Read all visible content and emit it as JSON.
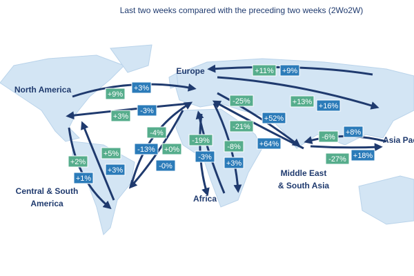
{
  "title": "Last two weeks compared with the preceding two weeks (2Wo2W)",
  "regions": [
    {
      "lines": [
        "Europe"
      ]
    },
    {
      "lines": [
        "North America"
      ]
    },
    {
      "lines": [
        "Central & South",
        "America"
      ]
    },
    {
      "lines": [
        "Africa"
      ]
    },
    {
      "lines": [
        "Middle East",
        "& South Asia"
      ]
    },
    {
      "lines": [
        "Asia Pac"
      ]
    }
  ],
  "flows": [
    {
      "label": "+9%",
      "color": "#56ad8c"
    },
    {
      "label": "+3%",
      "color": "#2b7bb9"
    },
    {
      "label": "+3%",
      "color": "#56ad8c"
    },
    {
      "label": "-3%",
      "color": "#2b7bb9"
    },
    {
      "label": "+11%",
      "color": "#56ad8c"
    },
    {
      "label": "+9%",
      "color": "#2b7bb9"
    },
    {
      "label": "-25%",
      "color": "#56ad8c"
    },
    {
      "label": "+13%",
      "color": "#56ad8c"
    },
    {
      "label": "+16%",
      "color": "#2b7bb9"
    },
    {
      "label": "+52%",
      "color": "#2b7bb9"
    },
    {
      "label": "-21%",
      "color": "#56ad8c"
    },
    {
      "label": "+64%",
      "color": "#2b7bb9"
    },
    {
      "label": "-4%",
      "color": "#56ad8c"
    },
    {
      "label": "-13%",
      "color": "#2b7bb9"
    },
    {
      "label": "+0%",
      "color": "#56ad8c"
    },
    {
      "label": "-0%",
      "color": "#2b7bb9"
    },
    {
      "label": "-19%",
      "color": "#56ad8c"
    },
    {
      "label": "-3%",
      "color": "#2b7bb9"
    },
    {
      "label": "-8%",
      "color": "#56ad8c"
    },
    {
      "label": "+3%",
      "color": "#2b7bb9"
    },
    {
      "label": "-6%",
      "color": "#56ad8c"
    },
    {
      "label": "+8%",
      "color": "#2b7bb9"
    },
    {
      "label": "-27%",
      "color": "#56ad8c"
    },
    {
      "label": "+18%",
      "color": "#2b7bb9"
    },
    {
      "label": "+2%",
      "color": "#56ad8c"
    },
    {
      "label": "+1%",
      "color": "#2b7bb9"
    },
    {
      "label": "+5%",
      "color": "#56ad8c"
    },
    {
      "label": "+3%",
      "color": "#2b7bb9"
    }
  ]
}
